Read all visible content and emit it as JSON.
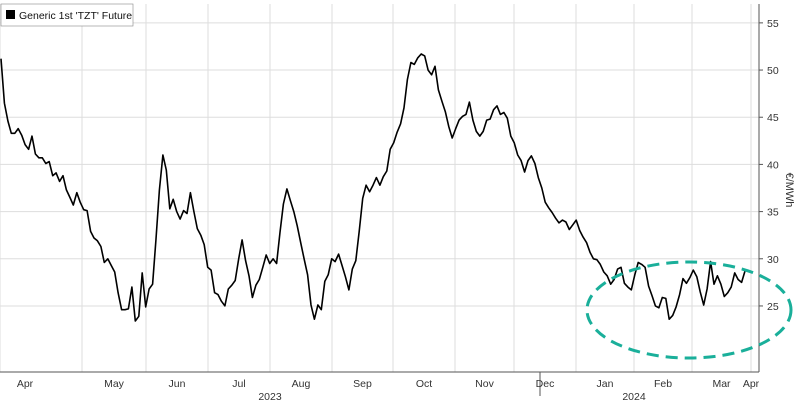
{
  "chart_data": {
    "type": "line",
    "legend": {
      "label": "Generic 1st 'TZT' Future",
      "color": "#000000",
      "position": "top-left"
    },
    "ylabel": "€/MWh",
    "ylim": [
      18,
      57
    ],
    "y_ticks": [
      25,
      30,
      35,
      40,
      45,
      50,
      55
    ],
    "y_axis_side": "right",
    "grid": true,
    "x_ticks": [
      "Apr",
      "May",
      "Jun",
      "Jul",
      "Aug",
      "Sep",
      "Oct",
      "Nov",
      "Dec",
      "Jan",
      "Feb",
      "Mar",
      "Apr"
    ],
    "year_labels": [
      "2023",
      "2024"
    ],
    "x_start": "2023-03-31",
    "series": [
      {
        "name": "Generic 1st 'TZT' Future",
        "color": "#000000",
        "values": [
          51.2,
          46.5,
          44.6,
          43.3,
          43.3,
          43.8,
          43.1,
          42.1,
          41.6,
          43.0,
          41.1,
          40.7,
          40.7,
          40.1,
          40.3,
          38.8,
          39.1,
          38.2,
          38.8,
          37.3,
          36.5,
          35.7,
          37.0,
          36.0,
          35.2,
          35.1,
          32.9,
          32.2,
          31.9,
          31.3,
          29.6,
          30.0,
          29.3,
          28.6,
          26.4,
          24.6,
          24.6,
          24.7,
          27.0,
          23.4,
          23.9,
          28.5,
          24.9,
          26.8,
          27.3,
          32.1,
          37.3,
          41.0,
          39.4,
          35.3,
          36.3,
          35.0,
          34.2,
          35.1,
          34.8,
          37.0,
          35.0,
          33.2,
          32.5,
          31.5,
          29.1,
          28.8,
          26.4,
          26.2,
          25.5,
          25.0,
          26.8,
          27.2,
          27.7,
          30.0,
          32.0,
          29.8,
          28.2,
          25.9,
          27.2,
          27.8,
          29.1,
          30.4,
          29.5,
          30.0,
          29.5,
          32.8,
          35.8,
          37.4,
          36.2,
          35.0,
          33.5,
          31.7,
          30.0,
          28.3,
          25.1,
          23.6,
          25.1,
          24.6,
          27.6,
          28.3,
          30.0,
          29.7,
          30.5,
          29.3,
          28.1,
          26.7,
          28.9,
          29.8,
          32.9,
          36.4,
          37.8,
          37.1,
          37.8,
          38.6,
          37.8,
          38.7,
          39.3,
          41.6,
          42.3,
          43.4,
          44.3,
          46.0,
          49.0,
          50.8,
          50.6,
          51.3,
          51.7,
          51.5,
          50.0,
          49.5,
          50.4,
          47.9,
          46.7,
          45.6,
          44.0,
          42.8,
          43.8,
          44.7,
          45.1,
          45.3,
          46.6,
          44.7,
          43.5,
          43.0,
          43.5,
          44.7,
          44.8,
          45.8,
          46.2,
          45.3,
          45.5,
          44.9,
          43.0,
          42.3,
          41.0,
          40.4,
          39.2,
          40.4,
          40.9,
          40.1,
          38.6,
          37.5,
          36.0,
          35.4,
          34.9,
          34.3,
          33.8,
          34.1,
          33.9,
          33.1,
          33.6,
          34.1,
          33.0,
          32.3,
          31.7,
          30.7,
          30.0,
          29.9,
          29.4,
          28.6,
          28.2,
          27.3,
          27.8,
          28.9,
          29.1,
          27.4,
          27.0,
          26.7,
          28.3,
          29.6,
          29.4,
          29.1,
          27.1,
          26.1,
          25.0,
          24.8,
          25.9,
          25.8,
          23.6,
          24.0,
          24.9,
          26.2,
          27.9,
          27.4,
          28.0,
          28.8,
          28.1,
          26.5,
          25.1,
          26.8,
          29.7,
          27.3,
          28.2,
          27.3,
          26.0,
          26.4,
          27.0,
          28.5,
          27.8,
          27.5,
          28.7
        ]
      }
    ]
  }
}
